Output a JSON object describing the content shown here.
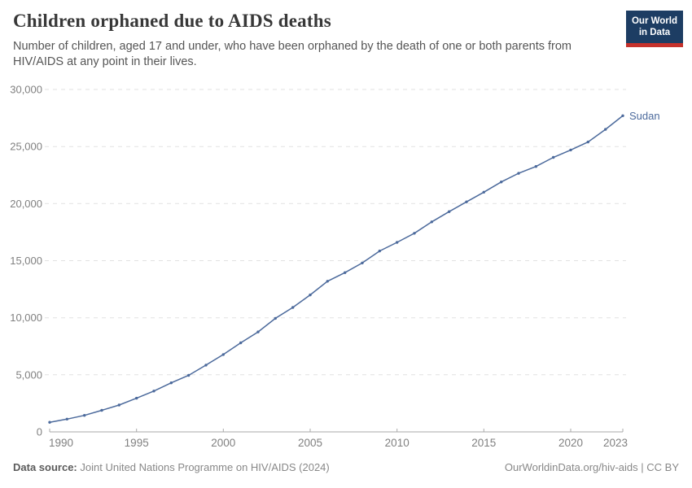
{
  "header": {
    "title": "Children orphaned due to AIDS deaths",
    "subtitle": "Number of children, aged 17 and under, who have been orphaned by the death of one or both parents from HIV/AIDS at any point in their lives."
  },
  "logo": {
    "line1": "Our World",
    "line2": "in Data",
    "bg_color": "#1d3d63",
    "accent_color": "#c5312b"
  },
  "footer": {
    "datasource_label": "Data source:",
    "datasource_value": "Joint United Nations Programme on HIV/AIDS (2024)",
    "credit": "OurWorldinData.org/hiv-aids | CC BY"
  },
  "chart_data": {
    "type": "line",
    "title": "Children orphaned due to AIDS deaths",
    "xlabel": "",
    "ylabel": "",
    "xlim": [
      1990,
      2023
    ],
    "ylim": [
      0,
      30000
    ],
    "x_ticks": [
      1990,
      1995,
      2000,
      2005,
      2010,
      2015,
      2020,
      2023
    ],
    "y_ticks": [
      0,
      5000,
      10000,
      15000,
      20000,
      25000,
      30000
    ],
    "grid": "horizontal-dashed",
    "legend_position": "end-of-line-label",
    "series": [
      {
        "name": "Sudan",
        "color": "#4C6A9C",
        "x": [
          1990,
          1991,
          1992,
          1993,
          1994,
          1995,
          1996,
          1997,
          1998,
          1999,
          2000,
          2001,
          2002,
          2003,
          2004,
          2005,
          2006,
          2007,
          2008,
          2009,
          2010,
          2011,
          2012,
          2013,
          2014,
          2015,
          2016,
          2017,
          2018,
          2019,
          2020,
          2021,
          2022,
          2023
        ],
        "values": [
          840,
          1120,
          1450,
          1890,
          2350,
          2950,
          3580,
          4300,
          4950,
          5850,
          6780,
          7800,
          8760,
          9950,
          10900,
          12000,
          13200,
          13950,
          14800,
          15850,
          16600,
          17400,
          18400,
          19300,
          20150,
          21000,
          21900,
          22650,
          23250,
          24050,
          24700,
          25400,
          26500,
          27700
        ]
      }
    ]
  }
}
